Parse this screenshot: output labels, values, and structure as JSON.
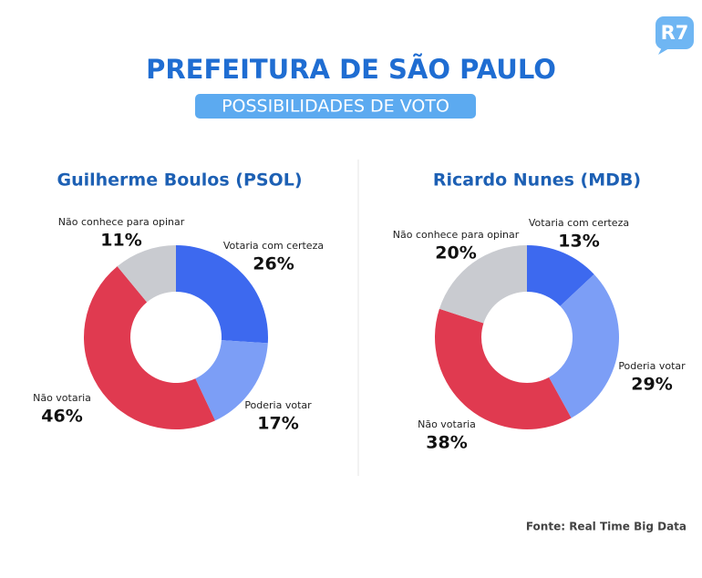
{
  "logo": "R7",
  "title": "PREFEITURA DE SÃO PAULO",
  "subtitle": "POSSIBILIDADES DE VOTO",
  "source": "Fonte: Real Time Big Data",
  "chart_data": [
    {
      "type": "donut",
      "title": "Guilherme Boulos (PSOL)",
      "categories": [
        "Votaria com certeza",
        "Poderia votar",
        "Não votaria",
        "Não conhece para opinar"
      ],
      "values": [
        26,
        17,
        46,
        11
      ],
      "value_labels": [
        "26%",
        "17%",
        "46%",
        "11%"
      ],
      "colors": [
        "#3d69ef",
        "#7c9ef6",
        "#e03a50",
        "#c9cbd0"
      ]
    },
    {
      "type": "donut",
      "title": "Ricardo Nunes (MDB)",
      "categories": [
        "Votaria com certeza",
        "Poderia votar",
        "Não votaria",
        "Não conhece para opinar"
      ],
      "values": [
        13,
        29,
        38,
        20
      ],
      "value_labels": [
        "13%",
        "29%",
        "38%",
        "20%"
      ],
      "colors": [
        "#3d69ef",
        "#7c9ef6",
        "#e03a50",
        "#c9cbd0"
      ]
    }
  ]
}
